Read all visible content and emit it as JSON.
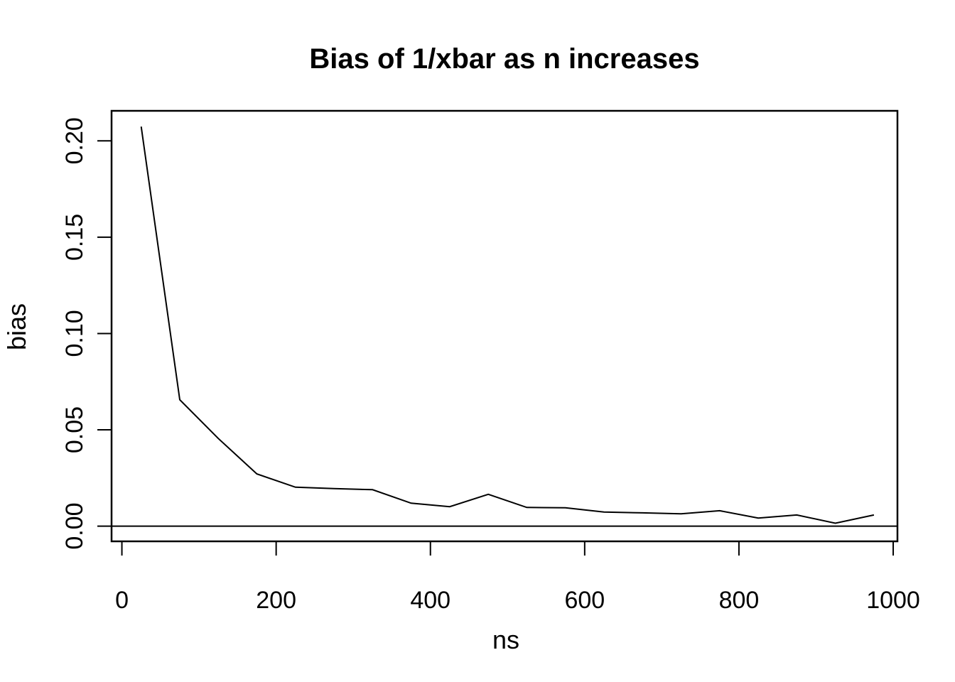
{
  "chart_data": {
    "type": "line",
    "title": "Bias of 1/xbar as n increases",
    "xlabel": "ns",
    "ylabel": "bias",
    "x": [
      25,
      75,
      125,
      175,
      225,
      275,
      325,
      375,
      425,
      475,
      525,
      575,
      625,
      675,
      725,
      775,
      825,
      875,
      925,
      975
    ],
    "y": [
      0.2074,
      0.0656,
      0.0455,
      0.0271,
      0.0202,
      0.0195,
      0.0189,
      0.0119,
      0.0101,
      0.0165,
      0.0097,
      0.0095,
      0.0073,
      0.0069,
      0.0064,
      0.008,
      0.0042,
      0.0058,
      0.0015,
      0.0058
    ],
    "x_ticks": {
      "values": [
        0,
        200,
        400,
        600,
        800,
        1000
      ],
      "labels": [
        "0",
        "200",
        "400",
        "600",
        "800",
        "1000"
      ]
    },
    "y_ticks": {
      "values": [
        0,
        0.05,
        0.1,
        0.15,
        0.2
      ],
      "labels": [
        "0.00",
        "0.05",
        "0.10",
        "0.15",
        "0.20"
      ]
    },
    "xlim": [
      -13.4,
      1005.5
    ],
    "ylim": [
      -0.0079,
      0.2156
    ],
    "reference_line_y": 0,
    "line_color": "#000000",
    "axis_color": "#000000",
    "background": "#ffffff",
    "grid": false,
    "legend": "none"
  }
}
